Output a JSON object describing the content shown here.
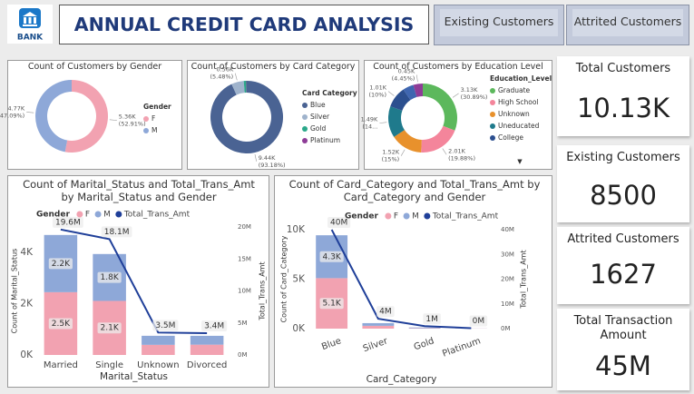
{
  "header": {
    "logo": "BANK",
    "title": "ANNUAL CREDIT CARD ANALYSIS",
    "buttons": [
      "Existing Customers",
      "Attrited Customers"
    ]
  },
  "kpis": [
    {
      "label": "Total Customers",
      "value": "10.13K"
    },
    {
      "label": "Existing Customers",
      "value": "8500"
    },
    {
      "label": "Attrited Customers",
      "value": "1627"
    },
    {
      "label": "Total Transaction Amount",
      "value": "45M"
    }
  ],
  "chart_data": [
    {
      "type": "donut",
      "title": "Count of Customers by Gender",
      "legend_title": "Gender",
      "categories": [
        "F",
        "M"
      ],
      "values": [
        5360,
        4770
      ],
      "value_labels": [
        "5.36K",
        "4.77K"
      ],
      "percent_labels": [
        "(52.91%)",
        "(47.09%)"
      ],
      "colors": [
        "#f2a2b1",
        "#8ea8d8"
      ]
    },
    {
      "type": "donut",
      "title": "Count of Customers by Card Category",
      "legend_title": "Card Category",
      "categories": [
        "Blue",
        "Silver",
        "Gold",
        "Platinum"
      ],
      "values": [
        9440,
        560,
        116,
        20
      ],
      "value_labels": [
        "9.44K",
        "0.56K",
        null,
        null
      ],
      "percent_labels": [
        "(93.18%)",
        "(5.48%)",
        null,
        null
      ],
      "colors": [
        "#4a6393",
        "#9fb3cc",
        "#2aa88a",
        "#8e3c97"
      ]
    },
    {
      "type": "donut",
      "title": "Count of Customers by Education Level",
      "legend_title": "Education_Level",
      "categories": [
        "Graduate",
        "High School",
        "Unknown",
        "Uneducated",
        "College",
        null,
        null
      ],
      "values": [
        3130,
        2010,
        1520,
        1490,
        1010,
        516,
        450
      ],
      "value_labels": [
        "3.13K",
        "2.01K",
        "1.52K",
        "1.49K",
        "1.01K",
        null,
        "0.45K"
      ],
      "percent_labels": [
        "(30.89%)",
        "(19.88%)",
        "(15%)",
        "(14...",
        "(10%)",
        null,
        "(4.45%)"
      ],
      "colors": [
        "#5cb85c",
        "#f4859b",
        "#e8912c",
        "#1f7a8c",
        "#2c4f8f",
        "#3f66b0",
        "#8e3c97"
      ]
    },
    {
      "type": "combo",
      "title": "Count of Marital_Status and Total_Trans_Amt by Marital_Status and Gender",
      "legend_title": "Gender",
      "categories": [
        "Married",
        "Single",
        "Unknown",
        "Divorced"
      ],
      "series": [
        {
          "name": "F",
          "color": "#f2a2b1",
          "values": [
            2451,
            2111,
            395,
            402
          ],
          "value_labels": [
            "2.5K",
            "2.1K",
            null,
            null
          ]
        },
        {
          "name": "M",
          "color": "#8ea8d8",
          "values": [
            2236,
            1832,
            354,
            346
          ],
          "value_labels": [
            "2.2K",
            "1.8K",
            null,
            null
          ]
        },
        {
          "name": "Total_Trans_Amt",
          "kind": "line",
          "axis": "y2",
          "color": "#1f3f99",
          "values": [
            19600000,
            18100000,
            3500000,
            3400000
          ],
          "value_labels": [
            "19.6M",
            "18.1M",
            "3.5M",
            "3.4M"
          ]
        }
      ],
      "ylim": [
        0,
        5000
      ],
      "yticks": [
        {
          "value": 0,
          "label": "0K"
        },
        {
          "value": 2000,
          "label": "2K"
        },
        {
          "value": 4000,
          "label": "4K"
        }
      ],
      "y2lim": [
        0,
        20000000
      ],
      "y2ticks": [
        {
          "value": 0,
          "label": "0M"
        },
        {
          "value": 5000000,
          "label": "5M"
        },
        {
          "value": 10000000,
          "label": "10M"
        },
        {
          "value": 15000000,
          "label": "15M"
        },
        {
          "value": 20000000,
          "label": "20M"
        }
      ],
      "ylabel": "Count of Marital_Status",
      "y2label": "Total_Trans_Amt",
      "xlabel": "Marital_Status"
    },
    {
      "type": "combo",
      "title": "Count of Card_Category and Total_Trans_Amt by Card_Category and Gender",
      "legend_title": "Gender",
      "categories": [
        "Blue",
        "Silver",
        "Gold",
        "Platinum"
      ],
      "series": [
        {
          "name": "F",
          "color": "#f2a2b1",
          "values": [
            5101,
            285,
            38,
            12
          ],
          "value_labels": [
            "5.1K",
            null,
            null,
            null
          ]
        },
        {
          "name": "M",
          "color": "#8ea8d8",
          "values": [
            4335,
            270,
            78,
            8
          ],
          "value_labels": [
            "4.3K",
            null,
            null,
            null
          ]
        },
        {
          "name": "Total_Trans_Amt",
          "kind": "line",
          "axis": "y2",
          "color": "#1f3f99",
          "values": [
            40000000,
            4000000,
            1000000,
            200000
          ],
          "value_labels": [
            "40M",
            "4M",
            "1M",
            "0M"
          ]
        }
      ],
      "ylim": [
        0,
        10000
      ],
      "yticks": [
        {
          "value": 0,
          "label": "0K"
        },
        {
          "value": 5000,
          "label": "5K"
        },
        {
          "value": 10000,
          "label": "10K"
        }
      ],
      "y2lim": [
        0,
        40000000
      ],
      "y2ticks": [
        {
          "value": 0,
          "label": "0M"
        },
        {
          "value": 10000000,
          "label": "10M"
        },
        {
          "value": 20000000,
          "label": "20M"
        },
        {
          "value": 30000000,
          "label": "30M"
        },
        {
          "value": 40000000,
          "label": "40M"
        }
      ],
      "ylabel": "Count of Card_Category",
      "y2label": "Total_Trans_Amt",
      "xlabel": "Card_Category"
    }
  ]
}
